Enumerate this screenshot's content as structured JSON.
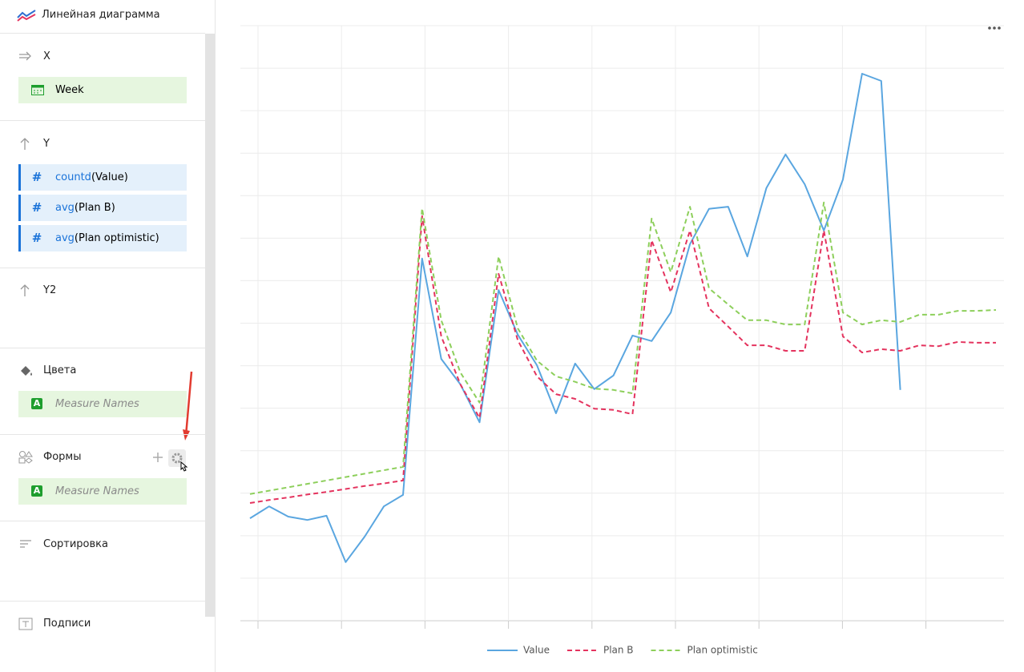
{
  "sidebar": {
    "chart_type": "Линейная диаграмма",
    "sections": [
      {
        "title": "X",
        "fields": [
          {
            "label": "Week"
          }
        ]
      },
      {
        "title": "Y",
        "fields": [
          {
            "icon": "#",
            "func": "countd",
            "arg": "(Value)"
          },
          {
            "icon": "#",
            "func": "avg",
            "arg": "(Plan B)"
          },
          {
            "icon": "#",
            "func": "avg",
            "arg": "(Plan optimistic)"
          }
        ]
      },
      {
        "title": "Y2"
      },
      {
        "title": "Цвета",
        "fields": [
          {
            "icon": "A",
            "label": "Measure Names"
          }
        ]
      },
      {
        "title": "Формы",
        "fields": [
          {
            "icon": "A",
            "label": "Measure Names"
          }
        ]
      },
      {
        "title": "Сортировка"
      },
      {
        "title": "Подписи"
      }
    ]
  },
  "chart_data": {
    "type": "line",
    "categories": [
      null,
      null,
      null,
      null,
      null,
      null,
      null,
      null,
      null,
      null,
      null,
      null,
      null,
      null,
      null,
      null,
      null,
      null,
      null,
      null,
      null,
      null,
      null,
      null,
      null,
      null,
      null,
      null,
      null,
      null,
      null,
      null,
      null,
      null,
      null,
      null,
      null,
      null,
      null,
      null
    ],
    "series": [
      {
        "name": "Value",
        "color": "#5aa6e0",
        "dash": "solid",
        "values": [
          2.41,
          2.69,
          2.45,
          2.37,
          2.47,
          1.38,
          1.98,
          2.69,
          2.96,
          8.52,
          6.16,
          5.56,
          4.67,
          7.78,
          6.73,
          6.01,
          4.88,
          6.05,
          5.45,
          5.77,
          6.71,
          6.58,
          7.25,
          8.86,
          9.69,
          9.74,
          8.57,
          10.18,
          10.97,
          10.27,
          9.18,
          10.38,
          12.87,
          12.7,
          5.43,
          null,
          null,
          null,
          null,
          null
        ]
      },
      {
        "name": "Plan B",
        "color": "#e4335e",
        "dash": "dashed",
        "values": [
          2.77,
          2.84,
          2.9,
          2.97,
          3.03,
          3.1,
          3.17,
          3.23,
          3.3,
          9.52,
          6.69,
          5.56,
          4.77,
          8.16,
          6.6,
          5.75,
          5.33,
          5.22,
          4.99,
          4.96,
          4.86,
          8.95,
          7.73,
          9.18,
          7.35,
          6.92,
          6.48,
          6.48,
          6.35,
          6.35,
          9.18,
          6.69,
          6.31,
          6.39,
          6.35,
          6.48,
          6.46,
          6.56,
          6.54,
          6.54
        ]
      },
      {
        "name": "Plan optimistic",
        "color": "#8dcf5b",
        "dash": "dashed",
        "values": [
          2.98,
          3.06,
          3.14,
          3.22,
          3.3,
          3.38,
          3.46,
          3.54,
          3.62,
          9.7,
          7.07,
          5.84,
          5.13,
          8.57,
          6.88,
          6.12,
          5.75,
          5.62,
          5.46,
          5.43,
          5.35,
          9.46,
          8.2,
          9.74,
          7.82,
          7.44,
          7.07,
          7.07,
          6.97,
          6.97,
          9.84,
          7.25,
          6.97,
          7.07,
          7.03,
          7.2,
          7.2,
          7.29,
          7.29,
          7.31
        ]
      }
    ],
    "ylim": [
      0,
      14
    ],
    "ygrid": [
      0,
      1,
      2,
      3,
      4,
      5,
      6,
      7,
      8,
      9,
      10,
      11,
      12,
      13,
      14
    ],
    "grid": true,
    "legend": "bottom"
  }
}
